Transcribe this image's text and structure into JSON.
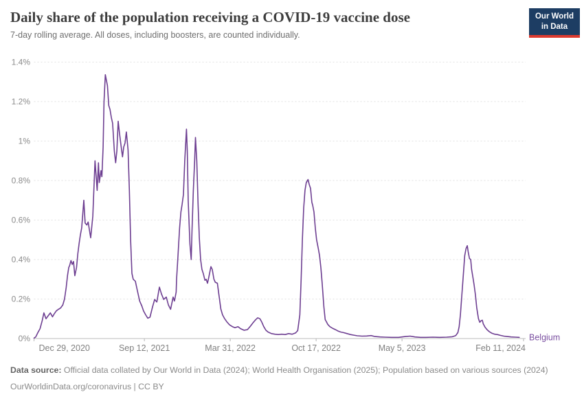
{
  "header": {
    "title": "Daily share of the population receiving a COVID-19 vaccine dose",
    "subtitle": "7-day rolling average. All doses, including boosters, are counted individually.",
    "logo": {
      "line1": "Our World",
      "line2": "in Data",
      "bg_color": "#1d3d63",
      "bar_color": "#dc3a2f"
    }
  },
  "chart_data": {
    "type": "line",
    "title": "Daily share of the population receiving a COVID-19 vaccine dose",
    "entity": "Belgium",
    "line_color": "#6d3e91",
    "entity_label_color": "#7a4fa0",
    "grid": "dashed-horizontal",
    "ylim": [
      0,
      1.4
    ],
    "y_ticks": [
      {
        "label": "0%",
        "value": 0
      },
      {
        "label": "0.2%",
        "value": 0.2
      },
      {
        "label": "0.4%",
        "value": 0.4
      },
      {
        "label": "0.6%",
        "value": 0.6
      },
      {
        "label": "0.8%",
        "value": 0.8
      },
      {
        "label": "1%",
        "value": 1.0
      },
      {
        "label": "1.2%",
        "value": 1.2
      },
      {
        "label": "1.4%",
        "value": 1.4
      }
    ],
    "x_ticks": [
      {
        "label": "Dec 29, 2020",
        "day": 0
      },
      {
        "label": "Sep 12, 2021",
        "day": 257
      },
      {
        "label": "Mar 31, 2022",
        "day": 457
      },
      {
        "label": "Oct 17, 2022",
        "day": 657
      },
      {
        "label": "May 5, 2023",
        "day": 857
      },
      {
        "label": "Feb 11, 2024",
        "day": 1140
      }
    ],
    "x_day0_date": "2020-12-29",
    "series": [
      {
        "name": "Belgium",
        "unit": "% of population per day",
        "points_day_value": [
          [
            0,
            0.002
          ],
          [
            4,
            0.008
          ],
          [
            9,
            0.03
          ],
          [
            14,
            0.05
          ],
          [
            19,
            0.09
          ],
          [
            23,
            0.13
          ],
          [
            28,
            0.1
          ],
          [
            33,
            0.115
          ],
          [
            38,
            0.13
          ],
          [
            43,
            0.11
          ],
          [
            47,
            0.125
          ],
          [
            52,
            0.14
          ],
          [
            57,
            0.148
          ],
          [
            62,
            0.155
          ],
          [
            67,
            0.17
          ],
          [
            71,
            0.2
          ],
          [
            75,
            0.26
          ],
          [
            78,
            0.32
          ],
          [
            81,
            0.36
          ],
          [
            83,
            0.37
          ],
          [
            86,
            0.395
          ],
          [
            89,
            0.375
          ],
          [
            92,
            0.39
          ],
          [
            95,
            0.318
          ],
          [
            99,
            0.36
          ],
          [
            102,
            0.43
          ],
          [
            105,
            0.48
          ],
          [
            108,
            0.525
          ],
          [
            111,
            0.56
          ],
          [
            116,
            0.7
          ],
          [
            119,
            0.585
          ],
          [
            123,
            0.575
          ],
          [
            126,
            0.59
          ],
          [
            129,
            0.55
          ],
          [
            132,
            0.51
          ],
          [
            137,
            0.62
          ],
          [
            142,
            0.9
          ],
          [
            147,
            0.75
          ],
          [
            150,
            0.89
          ],
          [
            152,
            0.79
          ],
          [
            156,
            0.85
          ],
          [
            158,
            0.82
          ],
          [
            161,
            0.97
          ],
          [
            163,
            1.2
          ],
          [
            166,
            1.336
          ],
          [
            171,
            1.28
          ],
          [
            174,
            1.18
          ],
          [
            177,
            1.16
          ],
          [
            180,
            1.12
          ],
          [
            183,
            1.09
          ],
          [
            187,
            0.95
          ],
          [
            190,
            0.89
          ],
          [
            193,
            0.95
          ],
          [
            196,
            1.1
          ],
          [
            199,
            1.04
          ],
          [
            203,
            0.97
          ],
          [
            206,
            0.92
          ],
          [
            209,
            0.97
          ],
          [
            212,
            0.99
          ],
          [
            215,
            1.046
          ],
          [
            219,
            0.955
          ],
          [
            222,
            0.75
          ],
          [
            225,
            0.5
          ],
          [
            228,
            0.33
          ],
          [
            231,
            0.3
          ],
          [
            236,
            0.29
          ],
          [
            241,
            0.24
          ],
          [
            246,
            0.19
          ],
          [
            251,
            0.165
          ],
          [
            255,
            0.14
          ],
          [
            260,
            0.12
          ],
          [
            265,
            0.103
          ],
          [
            270,
            0.108
          ],
          [
            276,
            0.16
          ],
          [
            281,
            0.198
          ],
          [
            286,
            0.185
          ],
          [
            292,
            0.26
          ],
          [
            297,
            0.225
          ],
          [
            302,
            0.198
          ],
          [
            308,
            0.21
          ],
          [
            313,
            0.17
          ],
          [
            318,
            0.148
          ],
          [
            324,
            0.21
          ],
          [
            327,
            0.19
          ],
          [
            331,
            0.235
          ],
          [
            332,
            0.3
          ],
          [
            335,
            0.41
          ],
          [
            339,
            0.56
          ],
          [
            342,
            0.64
          ],
          [
            345,
            0.68
          ],
          [
            348,
            0.73
          ],
          [
            351,
            0.9
          ],
          [
            355,
            1.06
          ],
          [
            357,
            0.95
          ],
          [
            359,
            0.7
          ],
          [
            363,
            0.48
          ],
          [
            366,
            0.4
          ],
          [
            368,
            0.55
          ],
          [
            371,
            0.75
          ],
          [
            374,
            0.9
          ],
          [
            376,
            1.018
          ],
          [
            379,
            0.9
          ],
          [
            382,
            0.68
          ],
          [
            385,
            0.51
          ],
          [
            388,
            0.4
          ],
          [
            391,
            0.35
          ],
          [
            394,
            0.33
          ],
          [
            398,
            0.295
          ],
          [
            401,
            0.3
          ],
          [
            404,
            0.28
          ],
          [
            407,
            0.31
          ],
          [
            412,
            0.364
          ],
          [
            415,
            0.35
          ],
          [
            419,
            0.3
          ],
          [
            422,
            0.285
          ],
          [
            427,
            0.28
          ],
          [
            430,
            0.23
          ],
          [
            435,
            0.15
          ],
          [
            439,
            0.12
          ],
          [
            444,
            0.1
          ],
          [
            449,
            0.085
          ],
          [
            455,
            0.07
          ],
          [
            462,
            0.06
          ],
          [
            468,
            0.055
          ],
          [
            475,
            0.06
          ],
          [
            481,
            0.05
          ],
          [
            489,
            0.042
          ],
          [
            497,
            0.045
          ],
          [
            503,
            0.06
          ],
          [
            510,
            0.08
          ],
          [
            516,
            0.095
          ],
          [
            521,
            0.105
          ],
          [
            526,
            0.1
          ],
          [
            530,
            0.085
          ],
          [
            535,
            0.06
          ],
          [
            540,
            0.042
          ],
          [
            545,
            0.033
          ],
          [
            553,
            0.025
          ],
          [
            561,
            0.022
          ],
          [
            569,
            0.02
          ],
          [
            577,
            0.022
          ],
          [
            585,
            0.02
          ],
          [
            593,
            0.025
          ],
          [
            601,
            0.022
          ],
          [
            609,
            0.028
          ],
          [
            614,
            0.04
          ],
          [
            619,
            0.12
          ],
          [
            622,
            0.3
          ],
          [
            625,
            0.5
          ],
          [
            628,
            0.66
          ],
          [
            631,
            0.75
          ],
          [
            634,
            0.79
          ],
          [
            638,
            0.805
          ],
          [
            641,
            0.78
          ],
          [
            644,
            0.76
          ],
          [
            647,
            0.69
          ],
          [
            649,
            0.675
          ],
          [
            652,
            0.64
          ],
          [
            655,
            0.56
          ],
          [
            658,
            0.5
          ],
          [
            662,
            0.455
          ],
          [
            665,
            0.42
          ],
          [
            668,
            0.36
          ],
          [
            671,
            0.28
          ],
          [
            675,
            0.16
          ],
          [
            678,
            0.096
          ],
          [
            681,
            0.085
          ],
          [
            684,
            0.072
          ],
          [
            689,
            0.06
          ],
          [
            695,
            0.052
          ],
          [
            702,
            0.045
          ],
          [
            708,
            0.038
          ],
          [
            714,
            0.033
          ],
          [
            721,
            0.03
          ],
          [
            729,
            0.025
          ],
          [
            737,
            0.02
          ],
          [
            745,
            0.017
          ],
          [
            753,
            0.014
          ],
          [
            764,
            0.012
          ],
          [
            775,
            0.013
          ],
          [
            785,
            0.015
          ],
          [
            794,
            0.01
          ],
          [
            806,
            0.008
          ],
          [
            817,
            0.007
          ],
          [
            833,
            0.006
          ],
          [
            849,
            0.006
          ],
          [
            865,
            0.01
          ],
          [
            876,
            0.012
          ],
          [
            887,
            0.008
          ],
          [
            900,
            0.006
          ],
          [
            913,
            0.006
          ],
          [
            929,
            0.007
          ],
          [
            945,
            0.006
          ],
          [
            961,
            0.007
          ],
          [
            974,
            0.009
          ],
          [
            982,
            0.015
          ],
          [
            987,
            0.03
          ],
          [
            990,
            0.06
          ],
          [
            993,
            0.12
          ],
          [
            996,
            0.21
          ],
          [
            999,
            0.3
          ],
          [
            1003,
            0.42
          ],
          [
            1006,
            0.455
          ],
          [
            1009,
            0.47
          ],
          [
            1011,
            0.44
          ],
          [
            1014,
            0.405
          ],
          [
            1017,
            0.4
          ],
          [
            1019,
            0.35
          ],
          [
            1022,
            0.31
          ],
          [
            1025,
            0.27
          ],
          [
            1028,
            0.22
          ],
          [
            1031,
            0.155
          ],
          [
            1035,
            0.1
          ],
          [
            1038,
            0.082
          ],
          [
            1041,
            0.09
          ],
          [
            1044,
            0.093
          ],
          [
            1046,
            0.075
          ],
          [
            1050,
            0.058
          ],
          [
            1055,
            0.045
          ],
          [
            1060,
            0.035
          ],
          [
            1066,
            0.027
          ],
          [
            1073,
            0.022
          ],
          [
            1079,
            0.02
          ],
          [
            1086,
            0.016
          ],
          [
            1094,
            0.012
          ],
          [
            1102,
            0.01
          ],
          [
            1111,
            0.008
          ],
          [
            1121,
            0.007
          ],
          [
            1130,
            0.006
          ]
        ]
      }
    ]
  },
  "footer": {
    "source_label": "Data source:",
    "source_text": "Official data collated by Our World in Data (2024); World Health Organisation (2025); Population based on various sources (2024)",
    "link": "OurWorldinData.org/coronavirus",
    "separator": " | ",
    "license": "CC BY"
  }
}
